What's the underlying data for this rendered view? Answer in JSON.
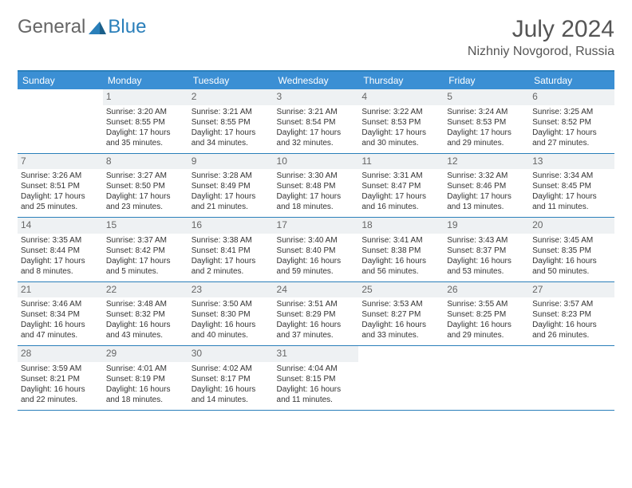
{
  "logo": {
    "text1": "General",
    "text2": "Blue"
  },
  "title": "July 2024",
  "location": "Nizhniy Novgorod, Russia",
  "weekdays": [
    "Sunday",
    "Monday",
    "Tuesday",
    "Wednesday",
    "Thursday",
    "Friday",
    "Saturday"
  ],
  "colors": {
    "header_bg": "#3b8fd4",
    "border": "#2a7fba",
    "daynum_bg": "#eef1f3",
    "text": "#333333",
    "logo_gray": "#666666",
    "logo_blue": "#2a7fba"
  },
  "weeks": [
    [
      {
        "n": "",
        "sr": "",
        "ss": "",
        "dl": ""
      },
      {
        "n": "1",
        "sr": "Sunrise: 3:20 AM",
        "ss": "Sunset: 8:55 PM",
        "dl": "Daylight: 17 hours and 35 minutes."
      },
      {
        "n": "2",
        "sr": "Sunrise: 3:21 AM",
        "ss": "Sunset: 8:55 PM",
        "dl": "Daylight: 17 hours and 34 minutes."
      },
      {
        "n": "3",
        "sr": "Sunrise: 3:21 AM",
        "ss": "Sunset: 8:54 PM",
        "dl": "Daylight: 17 hours and 32 minutes."
      },
      {
        "n": "4",
        "sr": "Sunrise: 3:22 AM",
        "ss": "Sunset: 8:53 PM",
        "dl": "Daylight: 17 hours and 30 minutes."
      },
      {
        "n": "5",
        "sr": "Sunrise: 3:24 AM",
        "ss": "Sunset: 8:53 PM",
        "dl": "Daylight: 17 hours and 29 minutes."
      },
      {
        "n": "6",
        "sr": "Sunrise: 3:25 AM",
        "ss": "Sunset: 8:52 PM",
        "dl": "Daylight: 17 hours and 27 minutes."
      }
    ],
    [
      {
        "n": "7",
        "sr": "Sunrise: 3:26 AM",
        "ss": "Sunset: 8:51 PM",
        "dl": "Daylight: 17 hours and 25 minutes."
      },
      {
        "n": "8",
        "sr": "Sunrise: 3:27 AM",
        "ss": "Sunset: 8:50 PM",
        "dl": "Daylight: 17 hours and 23 minutes."
      },
      {
        "n": "9",
        "sr": "Sunrise: 3:28 AM",
        "ss": "Sunset: 8:49 PM",
        "dl": "Daylight: 17 hours and 21 minutes."
      },
      {
        "n": "10",
        "sr": "Sunrise: 3:30 AM",
        "ss": "Sunset: 8:48 PM",
        "dl": "Daylight: 17 hours and 18 minutes."
      },
      {
        "n": "11",
        "sr": "Sunrise: 3:31 AM",
        "ss": "Sunset: 8:47 PM",
        "dl": "Daylight: 17 hours and 16 minutes."
      },
      {
        "n": "12",
        "sr": "Sunrise: 3:32 AM",
        "ss": "Sunset: 8:46 PM",
        "dl": "Daylight: 17 hours and 13 minutes."
      },
      {
        "n": "13",
        "sr": "Sunrise: 3:34 AM",
        "ss": "Sunset: 8:45 PM",
        "dl": "Daylight: 17 hours and 11 minutes."
      }
    ],
    [
      {
        "n": "14",
        "sr": "Sunrise: 3:35 AM",
        "ss": "Sunset: 8:44 PM",
        "dl": "Daylight: 17 hours and 8 minutes."
      },
      {
        "n": "15",
        "sr": "Sunrise: 3:37 AM",
        "ss": "Sunset: 8:42 PM",
        "dl": "Daylight: 17 hours and 5 minutes."
      },
      {
        "n": "16",
        "sr": "Sunrise: 3:38 AM",
        "ss": "Sunset: 8:41 PM",
        "dl": "Daylight: 17 hours and 2 minutes."
      },
      {
        "n": "17",
        "sr": "Sunrise: 3:40 AM",
        "ss": "Sunset: 8:40 PM",
        "dl": "Daylight: 16 hours and 59 minutes."
      },
      {
        "n": "18",
        "sr": "Sunrise: 3:41 AM",
        "ss": "Sunset: 8:38 PM",
        "dl": "Daylight: 16 hours and 56 minutes."
      },
      {
        "n": "19",
        "sr": "Sunrise: 3:43 AM",
        "ss": "Sunset: 8:37 PM",
        "dl": "Daylight: 16 hours and 53 minutes."
      },
      {
        "n": "20",
        "sr": "Sunrise: 3:45 AM",
        "ss": "Sunset: 8:35 PM",
        "dl": "Daylight: 16 hours and 50 minutes."
      }
    ],
    [
      {
        "n": "21",
        "sr": "Sunrise: 3:46 AM",
        "ss": "Sunset: 8:34 PM",
        "dl": "Daylight: 16 hours and 47 minutes."
      },
      {
        "n": "22",
        "sr": "Sunrise: 3:48 AM",
        "ss": "Sunset: 8:32 PM",
        "dl": "Daylight: 16 hours and 43 minutes."
      },
      {
        "n": "23",
        "sr": "Sunrise: 3:50 AM",
        "ss": "Sunset: 8:30 PM",
        "dl": "Daylight: 16 hours and 40 minutes."
      },
      {
        "n": "24",
        "sr": "Sunrise: 3:51 AM",
        "ss": "Sunset: 8:29 PM",
        "dl": "Daylight: 16 hours and 37 minutes."
      },
      {
        "n": "25",
        "sr": "Sunrise: 3:53 AM",
        "ss": "Sunset: 8:27 PM",
        "dl": "Daylight: 16 hours and 33 minutes."
      },
      {
        "n": "26",
        "sr": "Sunrise: 3:55 AM",
        "ss": "Sunset: 8:25 PM",
        "dl": "Daylight: 16 hours and 29 minutes."
      },
      {
        "n": "27",
        "sr": "Sunrise: 3:57 AM",
        "ss": "Sunset: 8:23 PM",
        "dl": "Daylight: 16 hours and 26 minutes."
      }
    ],
    [
      {
        "n": "28",
        "sr": "Sunrise: 3:59 AM",
        "ss": "Sunset: 8:21 PM",
        "dl": "Daylight: 16 hours and 22 minutes."
      },
      {
        "n": "29",
        "sr": "Sunrise: 4:01 AM",
        "ss": "Sunset: 8:19 PM",
        "dl": "Daylight: 16 hours and 18 minutes."
      },
      {
        "n": "30",
        "sr": "Sunrise: 4:02 AM",
        "ss": "Sunset: 8:17 PM",
        "dl": "Daylight: 16 hours and 14 minutes."
      },
      {
        "n": "31",
        "sr": "Sunrise: 4:04 AM",
        "ss": "Sunset: 8:15 PM",
        "dl": "Daylight: 16 hours and 11 minutes."
      },
      {
        "n": "",
        "sr": "",
        "ss": "",
        "dl": ""
      },
      {
        "n": "",
        "sr": "",
        "ss": "",
        "dl": ""
      },
      {
        "n": "",
        "sr": "",
        "ss": "",
        "dl": ""
      }
    ]
  ]
}
